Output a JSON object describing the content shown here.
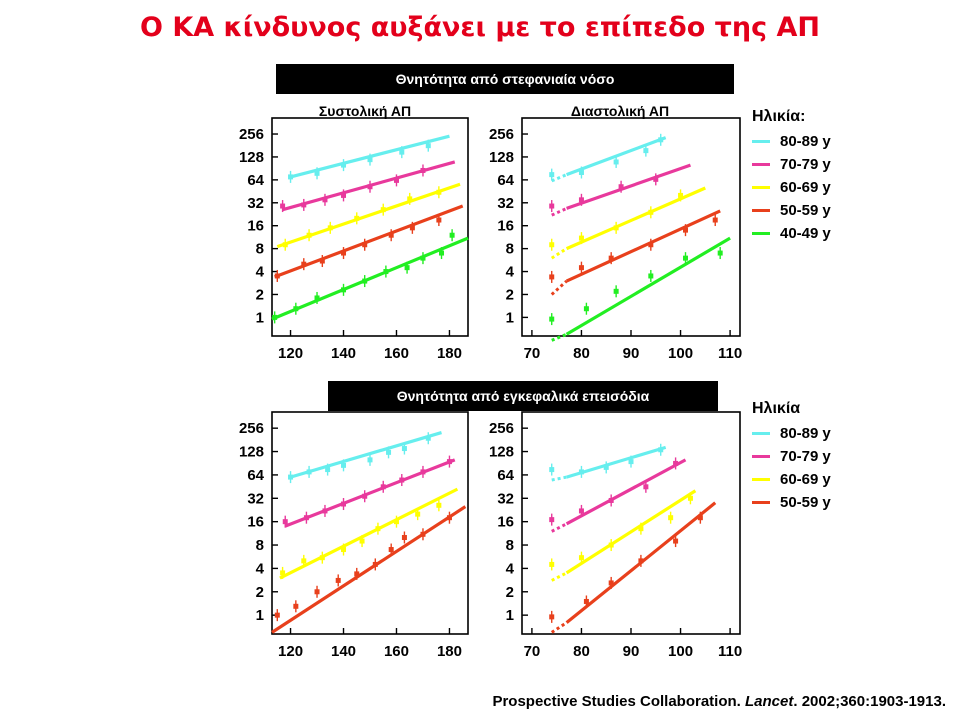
{
  "title": "Ο ΚΑ κίνδυνος αυξάνει με το επίπεδο της ΑΠ",
  "sections": {
    "chd": "Θνητότητα από στεφανιαία νόσο",
    "stroke": "Θνητότητα από εγκεφαλικά επεισόδια"
  },
  "subtitles": {
    "systolic": "Συστολική ΑΠ",
    "diastolic": "Διαστολική ΑΠ"
  },
  "legend_top": {
    "title": "Ηλικία:",
    "items": [
      {
        "label": "80-89",
        "unit": "y",
        "color": "#66eeee"
      },
      {
        "label": "70-79",
        "unit": "y",
        "color": "#e8399c"
      },
      {
        "label": "60-69",
        "unit": "y",
        "color": "#ffff00"
      },
      {
        "label": "50-59",
        "unit": "y",
        "color": "#e8401c"
      },
      {
        "label": "40-49",
        "unit": "y",
        "color": "#22ee22"
      }
    ]
  },
  "legend_bottom": {
    "title": "Ηλικία",
    "items": [
      {
        "label": "80-89",
        "unit": "y",
        "color": "#66eeee"
      },
      {
        "label": "70-79",
        "unit": "y",
        "color": "#e8399c"
      },
      {
        "label": "60-69",
        "unit": "y",
        "color": "#ffff00"
      },
      {
        "label": "50-59",
        "unit": "y",
        "color": "#e8401c"
      }
    ]
  },
  "citation": {
    "authors": "Prospective Studies Collaboration. ",
    "journal": "Lancet",
    "details": ". 2002;360:1903-1913."
  },
  "chart_data": [
    {
      "id": "chd-systolic",
      "type": "line",
      "y_scale": "log2",
      "y_ticks": [
        1,
        2,
        4,
        8,
        16,
        32,
        64,
        128,
        256
      ],
      "x_ticks": [
        120,
        140,
        160,
        180
      ],
      "xlim": [
        113,
        187
      ],
      "series": [
        {
          "name": "80-89",
          "color": "#66eeee",
          "line": [
            [
              120,
              70
            ],
            [
              180,
              240
            ]
          ],
          "points": [
            [
              120,
              70
            ],
            [
              130,
              78
            ],
            [
              140,
              100
            ],
            [
              150,
              118
            ],
            [
              162,
              148
            ],
            [
              172,
              180
            ]
          ]
        },
        {
          "name": "70-79",
          "color": "#e8399c",
          "line": [
            [
              117,
              26
            ],
            [
              182,
              110
            ]
          ],
          "points": [
            [
              117,
              29
            ],
            [
              125,
              30
            ],
            [
              133,
              35
            ],
            [
              140,
              40
            ],
            [
              150,
              52
            ],
            [
              160,
              63
            ],
            [
              170,
              85
            ]
          ]
        },
        {
          "name": "60-69",
          "color": "#ffff00",
          "line": [
            [
              115,
              8.5
            ],
            [
              184,
              56
            ]
          ],
          "points": [
            [
              118,
              9
            ],
            [
              127,
              12
            ],
            [
              135,
              15
            ],
            [
              145,
              20
            ],
            [
              155,
              26
            ],
            [
              165,
              36
            ],
            [
              176,
              44
            ]
          ]
        },
        {
          "name": "50-59",
          "color": "#e8401c",
          "line": [
            [
              114,
              3.4
            ],
            [
              185,
              29
            ]
          ],
          "points": [
            [
              115,
              3.5
            ],
            [
              125,
              5
            ],
            [
              132,
              5.5
            ],
            [
              140,
              7
            ],
            [
              148,
              9
            ],
            [
              158,
              12
            ],
            [
              166,
              15
            ],
            [
              176,
              19
            ]
          ]
        },
        {
          "name": "40-49",
          "color": "#22ee22",
          "line": [
            [
              113,
              0.95
            ],
            [
              187,
              11
            ]
          ],
          "points": [
            [
              114,
              1
            ],
            [
              122,
              1.3
            ],
            [
              130,
              1.8
            ],
            [
              140,
              2.3
            ],
            [
              148,
              3
            ],
            [
              156,
              4
            ],
            [
              164,
              4.5
            ],
            [
              170,
              6
            ],
            [
              177,
              7
            ],
            [
              181,
              12
            ]
          ]
        }
      ]
    },
    {
      "id": "chd-diastolic",
      "type": "line",
      "y_scale": "log2",
      "y_ticks": [
        1,
        2,
        4,
        8,
        16,
        32,
        64,
        128,
        256
      ],
      "x_ticks": [
        70,
        80,
        90,
        100,
        110
      ],
      "xlim": [
        68,
        112
      ],
      "series": [
        {
          "name": "80-89",
          "color": "#66eeee",
          "dashed_from": [
            74,
            62
          ],
          "line": [
            [
              77,
              75
            ],
            [
              97,
              230
            ]
          ],
          "points": [
            [
              74,
              75
            ],
            [
              80,
              80
            ],
            [
              87,
              110
            ],
            [
              93,
              155
            ],
            [
              96,
              215
            ]
          ]
        },
        {
          "name": "70-79",
          "color": "#e8399c",
          "dashed_from": [
            74,
            22
          ],
          "line": [
            [
              77,
              27
            ],
            [
              102,
              100
            ]
          ],
          "points": [
            [
              74,
              29
            ],
            [
              80,
              35
            ],
            [
              88,
              52
            ],
            [
              95,
              65
            ]
          ]
        },
        {
          "name": "60-69",
          "color": "#ffff00",
          "dashed_from": [
            74,
            6
          ],
          "line": [
            [
              77,
              8
            ],
            [
              105,
              50
            ]
          ],
          "points": [
            [
              74,
              9
            ],
            [
              80,
              11
            ],
            [
              87,
              15
            ],
            [
              94,
              24
            ],
            [
              100,
              40
            ]
          ]
        },
        {
          "name": "50-59",
          "color": "#e8401c",
          "dashed_from": [
            74,
            2
          ],
          "line": [
            [
              77,
              3
            ],
            [
              108,
              25
            ]
          ],
          "points": [
            [
              74,
              3.4
            ],
            [
              80,
              4.5
            ],
            [
              86,
              6
            ],
            [
              94,
              9
            ],
            [
              101,
              14
            ],
            [
              107,
              19
            ]
          ]
        },
        {
          "name": "40-49",
          "color": "#22ee22",
          "dashed_from": [
            74,
            0.5
          ],
          "line": [
            [
              77,
              0.6
            ],
            [
              110,
              11
            ]
          ],
          "points": [
            [
              74,
              0.95
            ],
            [
              81,
              1.3
            ],
            [
              87,
              2.2
            ],
            [
              94,
              3.5
            ],
            [
              101,
              6
            ],
            [
              108,
              7
            ]
          ]
        }
      ]
    },
    {
      "id": "stroke-systolic",
      "type": "line",
      "y_scale": "log2",
      "y_ticks": [
        1,
        2,
        4,
        8,
        16,
        32,
        64,
        128,
        256
      ],
      "x_ticks": [
        120,
        140,
        160,
        180
      ],
      "xlim": [
        113,
        187
      ],
      "series": [
        {
          "name": "80-89",
          "color": "#66eeee",
          "line": [
            [
              120,
              60
            ],
            [
              177,
              225
            ]
          ],
          "points": [
            [
              120,
              60
            ],
            [
              127,
              70
            ],
            [
              134,
              75
            ],
            [
              140,
              85
            ],
            [
              150,
              100
            ],
            [
              157,
              125
            ],
            [
              163,
              140
            ],
            [
              172,
              190
            ]
          ]
        },
        {
          "name": "70-79",
          "color": "#e8399c",
          "line": [
            [
              118,
              14
            ],
            [
              182,
              100
            ]
          ],
          "points": [
            [
              118,
              16
            ],
            [
              126,
              18
            ],
            [
              133,
              22
            ],
            [
              140,
              27
            ],
            [
              148,
              34
            ],
            [
              155,
              45
            ],
            [
              162,
              55
            ],
            [
              170,
              70
            ],
            [
              180,
              95
            ]
          ]
        },
        {
          "name": "60-69",
          "color": "#ffff00",
          "line": [
            [
              116,
              3
            ],
            [
              183,
              42
            ]
          ],
          "points": [
            [
              117,
              3.5
            ],
            [
              125,
              5
            ],
            [
              132,
              5.5
            ],
            [
              140,
              7
            ],
            [
              147,
              9
            ],
            [
              153,
              13
            ],
            [
              160,
              16
            ],
            [
              168,
              20
            ],
            [
              176,
              26
            ]
          ]
        },
        {
          "name": "50-59",
          "color": "#e8401c",
          "line": [
            [
              113,
              0.6
            ],
            [
              186,
              25
            ]
          ],
          "points": [
            [
              115,
              1
            ],
            [
              122,
              1.3
            ],
            [
              130,
              2
            ],
            [
              138,
              2.8
            ],
            [
              145,
              3.4
            ],
            [
              152,
              4.5
            ],
            [
              158,
              7
            ],
            [
              163,
              10
            ],
            [
              170,
              11
            ],
            [
              180,
              18
            ]
          ]
        }
      ]
    },
    {
      "id": "stroke-diastolic",
      "type": "line",
      "y_scale": "log2",
      "y_ticks": [
        1,
        2,
        4,
        8,
        16,
        32,
        64,
        128,
        256
      ],
      "x_ticks": [
        70,
        80,
        90,
        100,
        110
      ],
      "xlim": [
        68,
        112
      ],
      "series": [
        {
          "name": "80-89",
          "color": "#66eeee",
          "dashed_from": [
            74,
            55
          ],
          "line": [
            [
              77,
              60
            ],
            [
              97,
              145
            ]
          ],
          "points": [
            [
              74,
              75
            ],
            [
              80,
              70
            ],
            [
              85,
              80
            ],
            [
              90,
              95
            ],
            [
              96,
              135
            ]
          ]
        },
        {
          "name": "70-79",
          "color": "#e8399c",
          "dashed_from": [
            74,
            12
          ],
          "line": [
            [
              77,
              15
            ],
            [
              101,
              100
            ]
          ],
          "points": [
            [
              74,
              17
            ],
            [
              80,
              22
            ],
            [
              86,
              30
            ],
            [
              93,
              45
            ],
            [
              99,
              90
            ]
          ]
        },
        {
          "name": "60-69",
          "color": "#ffff00",
          "dashed_from": [
            74,
            2.8
          ],
          "line": [
            [
              77,
              3.5
            ],
            [
              103,
              40
            ]
          ],
          "points": [
            [
              74,
              4.5
            ],
            [
              80,
              5.5
            ],
            [
              86,
              8
            ],
            [
              92,
              13
            ],
            [
              98,
              18
            ],
            [
              102,
              32
            ]
          ]
        },
        {
          "name": "50-59",
          "color": "#e8401c",
          "dashed_from": [
            74,
            0.6
          ],
          "line": [
            [
              77,
              0.8
            ],
            [
              107,
              28
            ]
          ],
          "points": [
            [
              74,
              0.95
            ],
            [
              81,
              1.5
            ],
            [
              86,
              2.6
            ],
            [
              92,
              5
            ],
            [
              99,
              9
            ],
            [
              104,
              18
            ]
          ]
        }
      ]
    }
  ]
}
